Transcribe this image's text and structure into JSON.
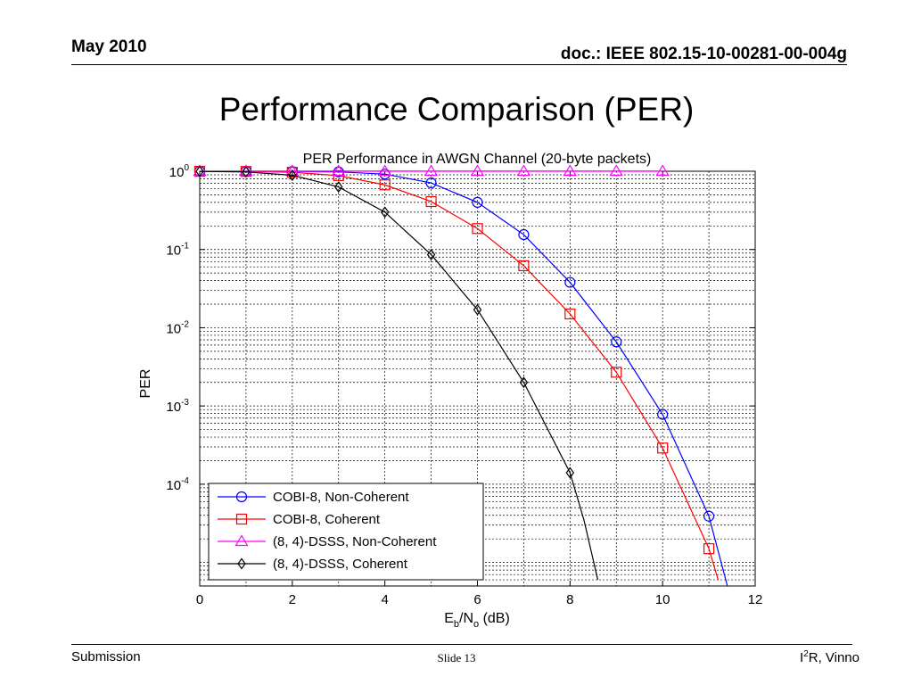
{
  "header": {
    "date": "May 2010",
    "doc_id": "doc.: IEEE 802.15-10-00281-00-004g"
  },
  "slide": {
    "title": "Performance Comparison (PER)"
  },
  "footer": {
    "left": "Submission",
    "center": "Slide 13",
    "right_prefix": "I",
    "right_sup": "2",
    "right_suffix": "R, Vinno"
  },
  "chart_data": {
    "type": "line",
    "title": "PER Performance in AWGN Channel (20-byte packets)",
    "xlabel": "E_b/N_o (dB)",
    "xlabel_parts": {
      "main": "E",
      "sub1": "b",
      "mid": "/N",
      "sub2": "o",
      "tail": " (dB)"
    },
    "ylabel": "PER",
    "xlim": [
      0,
      12
    ],
    "ylim": [
      5e-06,
      1
    ],
    "yscale": "log",
    "xticks": [
      "0",
      "2",
      "4",
      "6",
      "8",
      "10",
      "12"
    ],
    "yticks": [
      {
        "base": "10",
        "exp": "0",
        "value": 1
      },
      {
        "base": "10",
        "exp": "-1",
        "value": 0.1
      },
      {
        "base": "10",
        "exp": "-2",
        "value": 0.01
      },
      {
        "base": "10",
        "exp": "-3",
        "value": 0.001
      },
      {
        "base": "10",
        "exp": "-4",
        "value": 0.0001
      }
    ],
    "grid": true,
    "legend_position": "bottom-left",
    "series": [
      {
        "name": "COBI-8, Non-Coherent",
        "color": "#0000ff",
        "marker": "circle",
        "x": [
          0,
          1,
          2,
          3,
          4,
          5,
          6,
          7,
          8,
          9,
          10,
          11
        ],
        "y": [
          1.0,
          1.0,
          0.995,
          0.98,
          0.92,
          0.71,
          0.4,
          0.155,
          0.038,
          0.0066,
          0.00078,
          3.9e-05
        ],
        "curve_x": [
          11,
          11.4
        ],
        "curve_y": [
          3.9e-05,
          5e-06
        ]
      },
      {
        "name": "COBI-8, Coherent",
        "color": "#ff0000",
        "marker": "square",
        "x": [
          0,
          1,
          2,
          3,
          4,
          5,
          6,
          7,
          8,
          9,
          10,
          11
        ],
        "y": [
          1.0,
          0.995,
          0.97,
          0.88,
          0.67,
          0.41,
          0.185,
          0.062,
          0.015,
          0.0027,
          0.00029,
          1.5e-05
        ],
        "curve_x": [
          11,
          11.2
        ],
        "curve_y": [
          1.5e-05,
          6e-06
        ]
      },
      {
        "name": "(8, 4)-DSSS, Non-Coherent",
        "color": "#ff00ff",
        "marker": "triangle",
        "x": [
          0,
          1,
          2,
          3,
          4,
          5,
          6,
          7,
          8,
          9,
          10
        ],
        "y": [
          1.0,
          1.0,
          1.0,
          1.0,
          1.0,
          1.0,
          1.0,
          1.0,
          1.0,
          1.0,
          1.0
        ]
      },
      {
        "name": "(8, 4)-DSSS, Coherent",
        "color": "#000000",
        "marker": "diamond",
        "x": [
          0,
          1,
          2,
          3,
          4,
          5,
          6,
          7,
          8
        ],
        "y": [
          0.995,
          0.98,
          0.89,
          0.63,
          0.3,
          0.086,
          0.017,
          0.002,
          0.00014
        ],
        "curve_x": [
          8,
          8.3,
          8.6
        ],
        "curve_y": [
          0.00014,
          3.5e-05,
          6e-06
        ]
      }
    ]
  }
}
